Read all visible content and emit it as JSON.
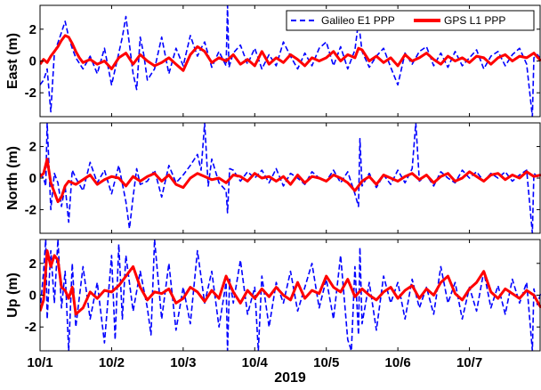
{
  "chart_data": [
    {
      "type": "line",
      "panel": "east",
      "ylabel": "East (m)",
      "ylim": [
        -3.5,
        3.5
      ],
      "yticks": [
        -2,
        0,
        2
      ],
      "ytick_labels": [
        "-2",
        "0",
        "2"
      ],
      "series": [
        {
          "name": "Galileo E1 PPP",
          "color": "#0000FF",
          "style": "dashed",
          "x": [
            1.0,
            1.05,
            1.08,
            1.1,
            1.15,
            1.2,
            1.3,
            1.35,
            1.4,
            1.45,
            1.5,
            1.6,
            1.7,
            1.8,
            1.9,
            2.0,
            2.1,
            2.15,
            2.2,
            2.3,
            2.35,
            2.4,
            2.45,
            2.5,
            2.6,
            2.7,
            2.8,
            2.9,
            3.0,
            3.1,
            3.2,
            3.25,
            3.3,
            3.4,
            3.5,
            3.6,
            3.62,
            3.64,
            3.7,
            3.8,
            3.9,
            4.0,
            4.1,
            4.2,
            4.3,
            4.4,
            4.5,
            4.6,
            4.7,
            4.8,
            4.9,
            5.0,
            5.1,
            5.2,
            5.3,
            5.4,
            5.45,
            5.5,
            5.6,
            5.7,
            5.8,
            5.9,
            6.0,
            6.1,
            6.2,
            6.3,
            6.4,
            6.5,
            6.6,
            6.7,
            6.8,
            6.9,
            7.0,
            7.1,
            7.2,
            7.3,
            7.4,
            7.5,
            7.6,
            7.7,
            7.8,
            7.88,
            7.9,
            7.95,
            8.0
          ],
          "y": [
            -1.5,
            -1.2,
            -0.8,
            -0.5,
            -3.2,
            0.5,
            1.8,
            2.5,
            1.5,
            0.8,
            0.2,
            -0.5,
            0.3,
            -0.8,
            0.8,
            -1.5,
            0.5,
            1.5,
            2.8,
            -0.8,
            -1.8,
            1.5,
            0.4,
            -1.2,
            -0.5,
            1.5,
            -0.8,
            0.8,
            -0.3,
            1.6,
            0.3,
            0.8,
            1.2,
            -0.4,
            0.6,
            -0.3,
            3.5,
            -0.4,
            0.5,
            1.0,
            -0.2,
            0.8,
            -0.5,
            0.4,
            -0.3,
            1.2,
            0.3,
            -0.5,
            0.5,
            -0.3,
            0.8,
            1.2,
            -0.3,
            0.9,
            -0.5,
            0.7,
            2.5,
            0.6,
            -0.4,
            0.3,
            0.8,
            -0.4,
            -1.5,
            0.5,
            -0.2,
            0.6,
            0.9,
            -0.3,
            0.5,
            -0.4,
            0.6,
            -0.3,
            0.2,
            0.7,
            -0.5,
            0.3,
            0.6,
            -0.3,
            0.4,
            0.8,
            -0.2,
            -3.5,
            0.2,
            0.4,
            0.1
          ]
        },
        {
          "name": "GPS L1 PPP",
          "color": "#FF0000",
          "style": "solid",
          "x": [
            1.0,
            1.05,
            1.1,
            1.15,
            1.2,
            1.25,
            1.3,
            1.35,
            1.4,
            1.45,
            1.5,
            1.55,
            1.6,
            1.7,
            1.8,
            1.9,
            2.0,
            2.1,
            2.2,
            2.3,
            2.4,
            2.5,
            2.6,
            2.7,
            2.8,
            2.9,
            3.0,
            3.1,
            3.2,
            3.3,
            3.4,
            3.5,
            3.6,
            3.7,
            3.8,
            3.9,
            4.0,
            4.1,
            4.2,
            4.3,
            4.4,
            4.5,
            4.6,
            4.7,
            4.8,
            4.9,
            5.0,
            5.1,
            5.2,
            5.3,
            5.4,
            5.45,
            5.5,
            5.6,
            5.7,
            5.8,
            5.9,
            6.0,
            6.1,
            6.2,
            6.3,
            6.4,
            6.5,
            6.6,
            6.7,
            6.8,
            6.9,
            7.0,
            7.1,
            7.2,
            7.3,
            7.4,
            7.5,
            7.6,
            7.7,
            7.8,
            7.9,
            8.0
          ],
          "y": [
            -0.2,
            0.1,
            -0.1,
            0.3,
            0.6,
            0.9,
            1.3,
            1.6,
            1.5,
            1.1,
            0.6,
            0.2,
            -0.1,
            0.1,
            -0.2,
            0.0,
            -0.5,
            0.2,
            0.5,
            -0.2,
            0.4,
            0.0,
            -0.3,
            -0.1,
            0.2,
            -0.2,
            -0.6,
            0.4,
            0.9,
            0.6,
            -0.1,
            0.2,
            0.0,
            0.4,
            -0.2,
            0.1,
            -0.3,
            0.6,
            -0.2,
            0.2,
            -0.1,
            0.4,
            0.1,
            -0.3,
            0.2,
            0.0,
            0.2,
            0.6,
            0.0,
            0.4,
            0.2,
            0.8,
            0.7,
            0.0,
            0.3,
            -0.1,
            0.2,
            -0.3,
            0.4,
            0.0,
            0.2,
            0.5,
            0.1,
            -0.2,
            0.3,
            0.0,
            0.2,
            -0.1,
            0.3,
            0.2,
            -0.2,
            0.2,
            0.4,
            0.0,
            0.3,
            0.2,
            0.5,
            0.0
          ]
        }
      ]
    },
    {
      "type": "line",
      "panel": "north",
      "ylabel": "North (m)",
      "ylim": [
        -3.5,
        3.5
      ],
      "yticks": [
        -2,
        0,
        2
      ],
      "ytick_labels": [
        "-2",
        "0",
        "2"
      ],
      "series": [
        {
          "name": "Galileo E1 PPP",
          "color": "#0000FF",
          "style": "dashed",
          "x": [
            1.0,
            1.05,
            1.08,
            1.1,
            1.15,
            1.2,
            1.25,
            1.3,
            1.35,
            1.4,
            1.45,
            1.5,
            1.6,
            1.7,
            1.8,
            1.9,
            2.0,
            2.1,
            2.2,
            2.25,
            2.3,
            2.35,
            2.4,
            2.5,
            2.6,
            2.7,
            2.8,
            2.9,
            3.0,
            3.1,
            3.2,
            3.25,
            3.3,
            3.35,
            3.4,
            3.5,
            3.6,
            3.62,
            3.65,
            3.7,
            3.8,
            3.9,
            4.0,
            4.1,
            4.2,
            4.3,
            4.4,
            4.5,
            4.6,
            4.7,
            4.8,
            4.9,
            5.0,
            5.1,
            5.2,
            5.3,
            5.4,
            5.45,
            5.47,
            5.5,
            5.6,
            5.7,
            5.8,
            5.9,
            6.0,
            6.1,
            6.2,
            6.25,
            6.3,
            6.4,
            6.5,
            6.6,
            6.7,
            6.8,
            6.9,
            7.0,
            7.1,
            7.2,
            7.3,
            7.4,
            7.5,
            7.6,
            7.7,
            7.8,
            7.88,
            7.9,
            7.95,
            8.0
          ],
          "y": [
            0.3,
            0.0,
            -0.5,
            3.5,
            -2.0,
            0.3,
            -0.3,
            -1.8,
            -0.5,
            -2.8,
            0.5,
            0.0,
            -0.8,
            1.0,
            -0.3,
            0.5,
            -1.0,
            0.8,
            -1.5,
            -3.2,
            -1.2,
            0.6,
            -0.4,
            -0.2,
            0.5,
            -1.2,
            0.8,
            -0.3,
            0.2,
            0.8,
            1.5,
            0.5,
            3.5,
            -0.5,
            1.2,
            -0.3,
            -0.8,
            -2.2,
            0.6,
            0.5,
            -0.2,
            0.4,
            0.0,
            0.5,
            -0.3,
            0.6,
            -0.5,
            0.3,
            0.0,
            -0.4,
            0.4,
            0.0,
            -0.2,
            0.5,
            -0.3,
            0.4,
            -1.0,
            -1.8,
            2.5,
            -0.5,
            0.3,
            -0.6,
            0.2,
            -0.4,
            0.5,
            -0.3,
            0.6,
            3.5,
            -0.2,
            0.2,
            -0.5,
            0.4,
            0.0,
            -0.3,
            0.5,
            0.0,
            0.4,
            -0.2,
            0.3,
            0.0,
            0.4,
            -0.2,
            0.2,
            0.5,
            -3.5,
            0.3,
            0.1,
            0.2
          ]
        },
        {
          "name": "GPS L1 PPP",
          "color": "#FF0000",
          "style": "solid",
          "x": [
            1.0,
            1.05,
            1.1,
            1.15,
            1.2,
            1.25,
            1.3,
            1.35,
            1.4,
            1.5,
            1.6,
            1.7,
            1.8,
            1.9,
            2.0,
            2.1,
            2.2,
            2.3,
            2.4,
            2.5,
            2.6,
            2.7,
            2.8,
            2.9,
            3.0,
            3.1,
            3.2,
            3.3,
            3.4,
            3.5,
            3.6,
            3.7,
            3.8,
            3.9,
            4.0,
            4.1,
            4.2,
            4.3,
            4.4,
            4.5,
            4.6,
            4.7,
            4.8,
            4.9,
            5.0,
            5.1,
            5.2,
            5.3,
            5.4,
            5.5,
            5.6,
            5.7,
            5.8,
            5.9,
            6.0,
            6.1,
            6.2,
            6.3,
            6.4,
            6.5,
            6.6,
            6.7,
            6.8,
            6.9,
            7.0,
            7.1,
            7.2,
            7.3,
            7.4,
            7.5,
            7.6,
            7.7,
            7.8,
            7.9,
            8.0
          ],
          "y": [
            0.1,
            0.3,
            1.2,
            -0.3,
            -0.9,
            -1.5,
            -1.2,
            -0.5,
            -0.2,
            -0.4,
            -0.1,
            0.2,
            -0.4,
            -0.1,
            0.1,
            0.0,
            -0.5,
            0.1,
            -0.2,
            0.1,
            0.3,
            -0.2,
            0.2,
            -0.4,
            -0.6,
            0.0,
            0.3,
            0.1,
            -0.1,
            0.0,
            -0.3,
            0.2,
            0.1,
            -0.2,
            0.3,
            0.0,
            0.1,
            -0.2,
            0.1,
            -0.4,
            0.2,
            -0.3,
            0.1,
            0.0,
            -0.2,
            0.2,
            0.0,
            -0.3,
            -0.8,
            -0.2,
            0.1,
            -0.4,
            0.2,
            0.0,
            -0.2,
            0.1,
            0.3,
            -0.1,
            0.2,
            -0.3,
            0.1,
            0.3,
            -0.2,
            0.0,
            0.4,
            0.1,
            -0.2,
            0.2,
            0.3,
            -0.1,
            0.2,
            0.0,
            0.4,
            0.1,
            0.2
          ]
        }
      ]
    },
    {
      "type": "line",
      "panel": "up",
      "ylabel": "Up (m)",
      "ylim": [
        -3.5,
        3.5
      ],
      "yticks": [
        -2,
        0,
        2
      ],
      "ytick_labels": [
        "-2",
        "0",
        "2"
      ],
      "xlim": [
        1,
        8
      ],
      "xticks": [
        1,
        2,
        3,
        4,
        5,
        6,
        7
      ],
      "xtick_labels": [
        "10/1",
        "10/2",
        "10/3",
        "10/4",
        "10/5",
        "10/6",
        "10/7"
      ],
      "xlabel": "2019",
      "series": [
        {
          "name": "Galileo E1 PPP",
          "color": "#0000FF",
          "style": "dashed",
          "x": [
            1.0,
            1.05,
            1.08,
            1.1,
            1.15,
            1.2,
            1.25,
            1.3,
            1.35,
            1.4,
            1.45,
            1.5,
            1.6,
            1.7,
            1.8,
            1.9,
            2.0,
            2.05,
            2.1,
            2.15,
            2.2,
            2.3,
            2.4,
            2.5,
            2.55,
            2.6,
            2.7,
            2.8,
            2.9,
            3.0,
            3.1,
            3.2,
            3.3,
            3.4,
            3.5,
            3.6,
            3.62,
            3.65,
            3.7,
            3.8,
            3.9,
            4.0,
            4.05,
            4.1,
            4.2,
            4.3,
            4.4,
            4.5,
            4.6,
            4.7,
            4.8,
            4.9,
            5.0,
            5.1,
            5.2,
            5.3,
            5.35,
            5.4,
            5.45,
            5.47,
            5.5,
            5.6,
            5.7,
            5.8,
            5.9,
            6.0,
            6.1,
            6.2,
            6.3,
            6.4,
            6.5,
            6.6,
            6.7,
            6.8,
            6.9,
            7.0,
            7.1,
            7.2,
            7.3,
            7.4,
            7.5,
            7.6,
            7.7,
            7.8,
            7.88,
            7.9,
            7.95,
            8.0
          ],
          "y": [
            -1.0,
            1.5,
            3.5,
            -1.5,
            2.8,
            -0.5,
            3.5,
            -0.8,
            1.5,
            -3.5,
            2.0,
            -2.0,
            1.8,
            -1.5,
            0.8,
            -3.0,
            2.5,
            -2.8,
            3.2,
            -1.5,
            2.5,
            -1.0,
            1.5,
            -0.8,
            -2.5,
            3.5,
            -1.5,
            2.0,
            -2.2,
            0.5,
            -1.8,
            2.8,
            -0.5,
            1.5,
            -2.0,
            0.8,
            -3.5,
            1.0,
            -0.5,
            2.2,
            -1.2,
            0.5,
            -3.5,
            1.2,
            -2.0,
            0.8,
            -0.5,
            1.5,
            -1.0,
            0.5,
            2.0,
            -0.8,
            1.0,
            -1.5,
            2.5,
            -2.8,
            -3.5,
            1.8,
            -2.5,
            3.0,
            -1.8,
            0.8,
            -2.2,
            1.2,
            -0.5,
            0.8,
            -1.5,
            1.0,
            -0.8,
            0.5,
            -1.2,
            1.8,
            -0.5,
            0.8,
            -1.5,
            0.5,
            -1.0,
            1.5,
            -0.8,
            0.6,
            -1.2,
            1.0,
            -0.5,
            0.8,
            -3.5,
            0.4,
            -0.6,
            0.2
          ]
        },
        {
          "name": "GPS L1 PPP",
          "color": "#FF0000",
          "style": "solid",
          "x": [
            1.0,
            1.05,
            1.1,
            1.15,
            1.2,
            1.25,
            1.3,
            1.35,
            1.4,
            1.45,
            1.5,
            1.6,
            1.7,
            1.8,
            1.9,
            2.0,
            2.1,
            2.2,
            2.3,
            2.4,
            2.5,
            2.6,
            2.7,
            2.8,
            2.9,
            3.0,
            3.1,
            3.2,
            3.3,
            3.4,
            3.5,
            3.6,
            3.7,
            3.8,
            3.9,
            4.0,
            4.1,
            4.2,
            4.3,
            4.4,
            4.5,
            4.6,
            4.7,
            4.8,
            4.9,
            5.0,
            5.1,
            5.2,
            5.3,
            5.4,
            5.5,
            5.6,
            5.7,
            5.8,
            5.9,
            6.0,
            6.1,
            6.2,
            6.3,
            6.4,
            6.5,
            6.6,
            6.7,
            6.8,
            6.9,
            7.0,
            7.1,
            7.2,
            7.3,
            7.4,
            7.5,
            7.6,
            7.7,
            7.8,
            7.9,
            8.0
          ],
          "y": [
            -1.0,
            -0.3,
            2.8,
            1.8,
            2.5,
            2.2,
            0.5,
            0.3,
            -0.2,
            0.5,
            -1.2,
            -0.8,
            0.2,
            -0.2,
            0.3,
            0.2,
            0.6,
            1.2,
            1.8,
            0.5,
            -0.3,
            0.2,
            0.1,
            0.4,
            -0.5,
            -0.2,
            0.5,
            0.2,
            -0.4,
            0.3,
            -0.2,
            1.2,
            0.2,
            -0.5,
            0.3,
            -0.2,
            0.4,
            -0.1,
            0.5,
            0.0,
            -0.3,
            0.8,
            -0.2,
            0.3,
            0.1,
            1.2,
            0.5,
            0.2,
            1.0,
            -0.1,
            0.4,
            0.0,
            -0.3,
            0.2,
            0.5,
            -0.2,
            0.3,
            0.6,
            -0.2,
            0.4,
            0.0,
            0.8,
            1.2,
            0.1,
            -0.3,
            0.4,
            0.8,
            1.5,
            0.2,
            -0.2,
            0.4,
            0.1,
            -0.2,
            0.3,
            0.0,
            -0.8
          ]
        }
      ]
    }
  ],
  "legend": {
    "placement": "top-right",
    "items": [
      {
        "label": "Galileo E1 PPP",
        "color": "#0000FF",
        "style": "dashed"
      },
      {
        "label": "GPS L1 PPP",
        "color": "#FF0000",
        "style": "solid"
      }
    ]
  },
  "colors": {
    "galileo": "#0000FF",
    "gps": "#FF0000",
    "axes": "#000000",
    "background": "#FFFFFF"
  }
}
